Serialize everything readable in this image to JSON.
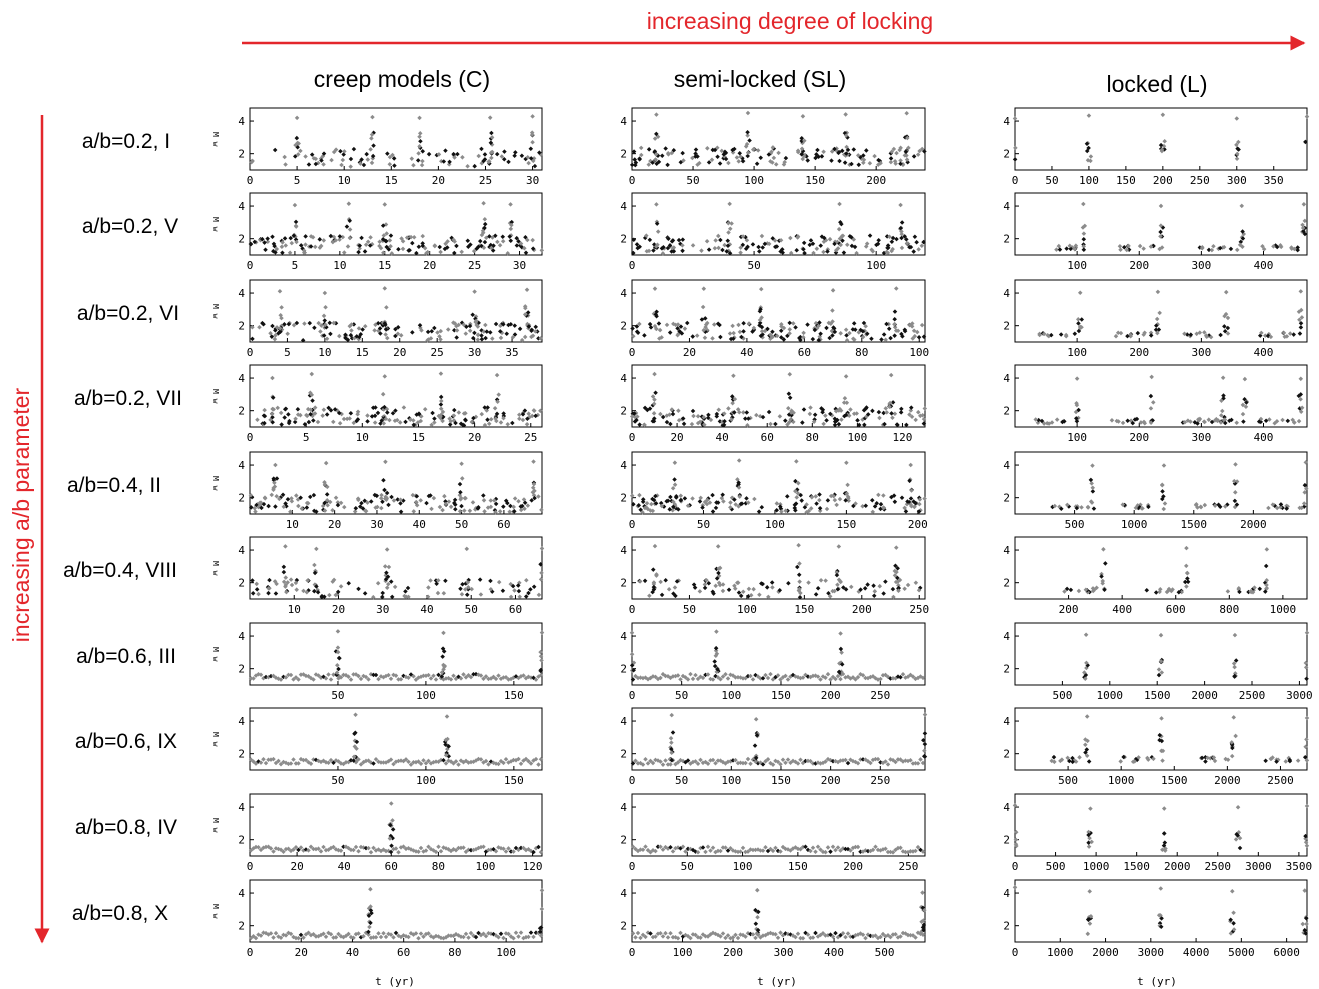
{
  "figure": {
    "top_arrow_label": "increasing degree of locking",
    "side_arrow_label": "increasing a/b parameter",
    "accent_color": "#e3262b",
    "column_titles": [
      "creep models (C)",
      "semi-locked (SL)",
      "locked (L)"
    ],
    "row_labels": [
      "a/b=0.2, I",
      "a/b=0.2, V",
      "a/b=0.2, VI",
      "a/b=0.2, VII",
      "a/b=0.4, II",
      "a/b=0.4, VIII",
      "a/b=0.6, III",
      "a/b=0.6, IX",
      "a/b=0.8, IV",
      "a/b=0.8, X"
    ],
    "ylabel": "M w",
    "xlabel": "t (yr)",
    "series_colors": {
      "black": "#111111",
      "gray": "#8c8c8c"
    }
  },
  "chart_data": [
    {
      "type": "scatter",
      "row": "a/b=0.2, I",
      "column": "creep models (C)",
      "xlim": [
        0,
        31
      ],
      "ylim": [
        1,
        4.8
      ],
      "xticks": [
        0,
        5,
        10,
        15,
        20,
        25,
        30
      ],
      "yticks": [
        2,
        4
      ],
      "pattern": "clustered",
      "base": 1.5,
      "events": [
        5,
        13,
        18,
        25.5,
        30
      ]
    },
    {
      "type": "scatter",
      "row": "a/b=0.2, I",
      "column": "semi-locked (SL)",
      "xlim": [
        0,
        240
      ],
      "ylim": [
        1,
        4.8
      ],
      "xticks": [
        0,
        50,
        100,
        150,
        200
      ],
      "yticks": [
        2,
        4
      ],
      "pattern": "dense",
      "base": 1.6,
      "events": [
        20,
        95,
        140,
        175,
        225
      ]
    },
    {
      "type": "scatter",
      "row": "a/b=0.2, I",
      "column": "locked (L)",
      "xlim": [
        0,
        395
      ],
      "ylim": [
        1,
        4.8
      ],
      "xticks": [
        0,
        50,
        100,
        150,
        200,
        250,
        300,
        350
      ],
      "yticks": [
        2,
        4
      ],
      "pattern": "spikes",
      "base": 1.5,
      "events": [
        0,
        100,
        200,
        300,
        395
      ]
    },
    {
      "type": "scatter",
      "row": "a/b=0.2, V",
      "column": "creep models (C)",
      "xlim": [
        0,
        32.5
      ],
      "ylim": [
        1,
        4.8
      ],
      "xticks": [
        0,
        5,
        10,
        15,
        20,
        25,
        30
      ],
      "yticks": [
        2,
        4
      ],
      "pattern": "dense",
      "base": 1.4,
      "events": [
        5,
        11,
        15,
        26,
        29
      ]
    },
    {
      "type": "scatter",
      "row": "a/b=0.2, V",
      "column": "semi-locked (SL)",
      "xlim": [
        0,
        120
      ],
      "ylim": [
        1,
        4.8
      ],
      "xticks": [
        0,
        50,
        100
      ],
      "yticks": [
        2,
        4
      ],
      "pattern": "dense",
      "base": 1.4,
      "events": [
        10,
        40,
        85,
        110
      ]
    },
    {
      "type": "scatter",
      "row": "a/b=0.2, V",
      "column": "locked (L)",
      "xlim": [
        0,
        470
      ],
      "ylim": [
        1,
        4.8
      ],
      "xticks": [
        100,
        200,
        300,
        400
      ],
      "yticks": [
        2,
        4
      ],
      "pattern": "sparse",
      "base": 1.3,
      "events": [
        110,
        235,
        365,
        465
      ]
    },
    {
      "type": "scatter",
      "row": "a/b=0.2, VI",
      "column": "creep models (C)",
      "xlim": [
        0,
        39
      ],
      "ylim": [
        1,
        4.8
      ],
      "xticks": [
        0,
        5,
        10,
        15,
        20,
        25,
        30,
        35
      ],
      "yticks": [
        2,
        4
      ],
      "pattern": "dense",
      "base": 1.4,
      "events": [
        4,
        10,
        18,
        30,
        37
      ]
    },
    {
      "type": "scatter",
      "row": "a/b=0.2, VI",
      "column": "semi-locked (SL)",
      "xlim": [
        0,
        102
      ],
      "ylim": [
        1,
        4.8
      ],
      "xticks": [
        0,
        20,
        40,
        60,
        80,
        100
      ],
      "yticks": [
        2,
        4
      ],
      "pattern": "dense",
      "base": 1.4,
      "events": [
        8,
        25,
        45,
        70,
        92
      ]
    },
    {
      "type": "scatter",
      "row": "a/b=0.2, VI",
      "column": "locked (L)",
      "xlim": [
        0,
        470
      ],
      "ylim": [
        1,
        4.8
      ],
      "xticks": [
        100,
        200,
        300,
        400
      ],
      "yticks": [
        2,
        4
      ],
      "pattern": "sparse",
      "base": 1.3,
      "events": [
        105,
        230,
        340,
        460
      ]
    },
    {
      "type": "scatter",
      "row": "a/b=0.2, VII",
      "column": "creep models (C)",
      "xlim": [
        0,
        26
      ],
      "ylim": [
        1,
        4.8
      ],
      "xticks": [
        0,
        5,
        10,
        15,
        20,
        25
      ],
      "yticks": [
        2,
        4
      ],
      "pattern": "dense",
      "base": 1.4,
      "events": [
        2,
        5.5,
        12,
        17,
        22
      ]
    },
    {
      "type": "scatter",
      "row": "a/b=0.2, VII",
      "column": "semi-locked (SL)",
      "xlim": [
        0,
        130
      ],
      "ylim": [
        1,
        4.8
      ],
      "xticks": [
        0,
        20,
        40,
        60,
        80,
        100,
        120
      ],
      "yticks": [
        2,
        4
      ],
      "pattern": "dense",
      "base": 1.4,
      "events": [
        10,
        45,
        70,
        95,
        115
      ]
    },
    {
      "type": "scatter",
      "row": "a/b=0.2, VII",
      "column": "locked (L)",
      "xlim": [
        0,
        470
      ],
      "ylim": [
        1,
        4.8
      ],
      "xticks": [
        100,
        200,
        300,
        400
      ],
      "yticks": [
        2,
        4
      ],
      "pattern": "sparse",
      "base": 1.2,
      "events": [
        100,
        220,
        335,
        370,
        460
      ]
    },
    {
      "type": "scatter",
      "row": "a/b=0.4, II",
      "column": "creep models (C)",
      "xlim": [
        0,
        69
      ],
      "ylim": [
        1,
        4.8
      ],
      "xticks": [
        10,
        20,
        30,
        40,
        50,
        60
      ],
      "yticks": [
        2,
        4
      ],
      "pattern": "dense",
      "base": 1.4,
      "events": [
        6,
        18,
        32,
        50,
        67
      ]
    },
    {
      "type": "scatter",
      "row": "a/b=0.4, II",
      "column": "semi-locked (SL)",
      "xlim": [
        0,
        205
      ],
      "ylim": [
        1,
        4.8
      ],
      "xticks": [
        0,
        50,
        100,
        150,
        200
      ],
      "yticks": [
        2,
        4
      ],
      "pattern": "dense",
      "base": 1.4,
      "events": [
        30,
        75,
        115,
        150,
        195
      ]
    },
    {
      "type": "scatter",
      "row": "a/b=0.4, II",
      "column": "locked (L)",
      "xlim": [
        0,
        2450
      ],
      "ylim": [
        1,
        4.8
      ],
      "xticks": [
        500,
        1000,
        1500,
        2000
      ],
      "yticks": [
        2,
        4
      ],
      "pattern": "sparse",
      "base": 1.3,
      "events": [
        650,
        1250,
        1850,
        2440
      ]
    },
    {
      "type": "scatter",
      "row": "a/b=0.4, VIII",
      "column": "creep models (C)",
      "xlim": [
        0,
        66
      ],
      "ylim": [
        1,
        4.8
      ],
      "xticks": [
        10,
        20,
        30,
        40,
        50,
        60
      ],
      "yticks": [
        2,
        4
      ],
      "pattern": "clustered",
      "base": 1.4,
      "events": [
        8,
        15,
        31,
        49,
        66
      ]
    },
    {
      "type": "scatter",
      "row": "a/b=0.4, VIII",
      "column": "semi-locked (SL)",
      "xlim": [
        0,
        255
      ],
      "ylim": [
        1,
        4.8
      ],
      "xticks": [
        0,
        50,
        100,
        150,
        200,
        250
      ],
      "yticks": [
        2,
        4
      ],
      "pattern": "clustered",
      "base": 1.4,
      "events": [
        20,
        75,
        145,
        180,
        230
      ]
    },
    {
      "type": "scatter",
      "row": "a/b=0.4, VIII",
      "column": "locked (L)",
      "xlim": [
        0,
        1090
      ],
      "ylim": [
        1,
        4.8
      ],
      "xticks": [
        200,
        400,
        600,
        800,
        1000
      ],
      "yticks": [
        2,
        4
      ],
      "pattern": "sparse",
      "base": 1.4,
      "events": [
        330,
        640,
        940
      ]
    },
    {
      "type": "scatter",
      "row": "a/b=0.6, III",
      "column": "creep models (C)",
      "xlim": [
        0,
        166
      ],
      "ylim": [
        1,
        4.8
      ],
      "xticks": [
        50,
        100,
        150
      ],
      "yticks": [
        2,
        4
      ],
      "pattern": "quiet",
      "base": 1.5,
      "events": [
        50,
        110,
        166
      ]
    },
    {
      "type": "scatter",
      "row": "a/b=0.6, III",
      "column": "semi-locked (SL)",
      "xlim": [
        0,
        295
      ],
      "ylim": [
        1,
        4.8
      ],
      "xticks": [
        0,
        50,
        100,
        150,
        200,
        250
      ],
      "yticks": [
        2,
        4
      ],
      "pattern": "quiet",
      "base": 1.5,
      "events": [
        0,
        85,
        210
      ]
    },
    {
      "type": "scatter",
      "row": "a/b=0.6, III",
      "column": "locked (L)",
      "xlim": [
        0,
        3080
      ],
      "ylim": [
        1,
        4.8
      ],
      "xticks": [
        500,
        1000,
        1500,
        2000,
        2500,
        3000
      ],
      "yticks": [
        2,
        4
      ],
      "pattern": "spikes",
      "base": 1.3,
      "events": [
        750,
        1540,
        2320,
        3080
      ]
    },
    {
      "type": "scatter",
      "row": "a/b=0.6, IX",
      "column": "creep models (C)",
      "xlim": [
        0,
        166
      ],
      "ylim": [
        1,
        4.8
      ],
      "xticks": [
        50,
        100,
        150
      ],
      "yticks": [
        2,
        4
      ],
      "pattern": "quiet",
      "base": 1.5,
      "events": [
        60,
        112
      ]
    },
    {
      "type": "scatter",
      "row": "a/b=0.6, IX",
      "column": "semi-locked (SL)",
      "xlim": [
        0,
        295
      ],
      "ylim": [
        1,
        4.8
      ],
      "xticks": [
        0,
        50,
        100,
        150,
        200,
        250
      ],
      "yticks": [
        2,
        4
      ],
      "pattern": "quiet",
      "base": 1.5,
      "events": [
        40,
        125,
        295
      ]
    },
    {
      "type": "scatter",
      "row": "a/b=0.6, IX",
      "column": "locked (L)",
      "xlim": [
        0,
        2750
      ],
      "ylim": [
        1,
        4.8
      ],
      "xticks": [
        500,
        1000,
        1500,
        2000,
        2500
      ],
      "yticks": [
        2,
        4
      ],
      "pattern": "sparse",
      "base": 1.5,
      "events": [
        680,
        1380,
        2060,
        2750
      ]
    },
    {
      "type": "scatter",
      "row": "a/b=0.8, IV",
      "column": "creep models (C)",
      "xlim": [
        0,
        124
      ],
      "ylim": [
        1,
        4.8
      ],
      "xticks": [
        0,
        20,
        40,
        60,
        80,
        100,
        120
      ],
      "yticks": [
        2,
        4
      ],
      "pattern": "quiet",
      "base": 1.4,
      "events": [
        60
      ]
    },
    {
      "type": "scatter",
      "row": "a/b=0.8, IV",
      "column": "semi-locked (SL)",
      "xlim": [
        0,
        265
      ],
      "ylim": [
        1,
        4.8
      ],
      "xticks": [
        0,
        50,
        100,
        150,
        200,
        250
      ],
      "yticks": [
        2,
        4
      ],
      "pattern": "quiet",
      "base": 1.4,
      "events": []
    },
    {
      "type": "scatter",
      "row": "a/b=0.8, IV",
      "column": "locked (L)",
      "xlim": [
        0,
        3600
      ],
      "ylim": [
        1,
        4.8
      ],
      "xticks": [
        0,
        500,
        1000,
        1500,
        2000,
        2500,
        3000,
        3500
      ],
      "yticks": [
        2,
        4
      ],
      "pattern": "spikes",
      "base": 1.3,
      "events": [
        0,
        930,
        1840,
        2750,
        3600
      ]
    },
    {
      "type": "scatter",
      "row": "a/b=0.8, X",
      "column": "creep models (C)",
      "xlim": [
        0,
        114
      ],
      "ylim": [
        1,
        4.8
      ],
      "xticks": [
        0,
        20,
        40,
        60,
        80,
        100
      ],
      "yticks": [
        2,
        4
      ],
      "pattern": "quiet",
      "base": 1.4,
      "events": [
        47,
        114
      ]
    },
    {
      "type": "scatter",
      "row": "a/b=0.8, X",
      "column": "semi-locked (SL)",
      "xlim": [
        0,
        580
      ],
      "ylim": [
        1,
        4.8
      ],
      "xticks": [
        0,
        100,
        200,
        300,
        400,
        500
      ],
      "yticks": [
        2,
        4
      ],
      "pattern": "quiet",
      "base": 1.4,
      "events": [
        248,
        575
      ]
    },
    {
      "type": "scatter",
      "row": "a/b=0.8, X",
      "column": "locked (L)",
      "xlim": [
        0,
        6450
      ],
      "ylim": [
        1,
        4.8
      ],
      "xticks": [
        0,
        1000,
        2000,
        3000,
        4000,
        5000,
        6000
      ],
      "yticks": [
        2,
        4
      ],
      "pattern": "spikes",
      "base": 1.5,
      "events": [
        0,
        1650,
        3220,
        4800,
        6400
      ]
    }
  ]
}
